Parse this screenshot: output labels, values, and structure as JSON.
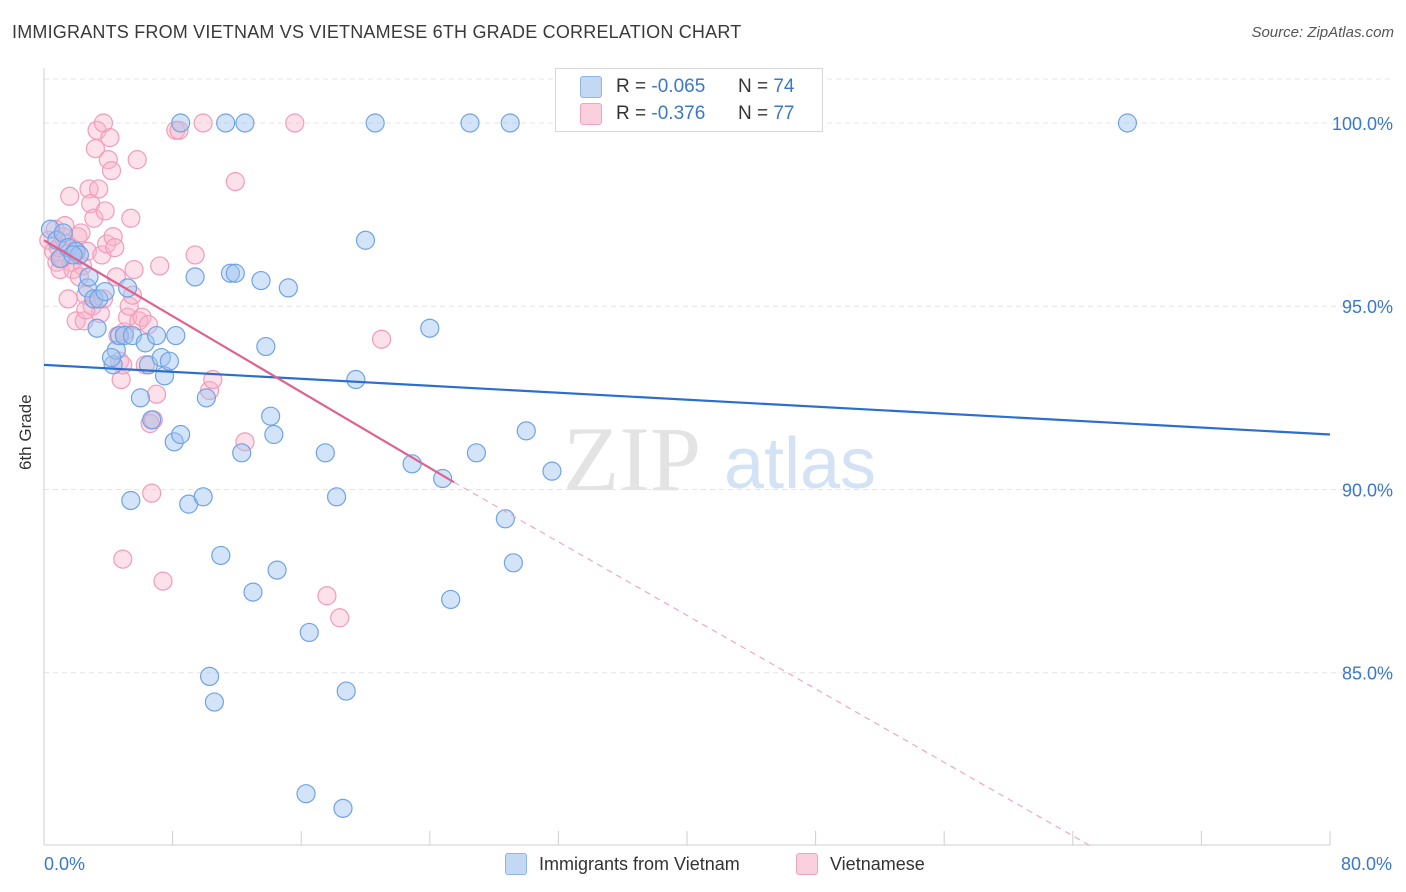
{
  "header": {
    "title": "IMMIGRANTS FROM VIETNAM VS VIETNAMESE 6TH GRADE CORRELATION CHART",
    "source": "Source: ZipAtlas.com"
  },
  "watermark": {
    "zip": "ZIP",
    "atlas": "atlas"
  },
  "legend": {
    "series": [
      {
        "r_label": "R =",
        "r_value": "-0.065",
        "n_label": "N =",
        "n_value": "74",
        "color": "#a9c8f0"
      },
      {
        "r_label": "R =",
        "r_value": "-0.376",
        "n_label": "N =",
        "n_value": "77",
        "color": "#f7b9cc"
      }
    ]
  },
  "chart_data": {
    "type": "scatter",
    "title": "IMMIGRANTS FROM VIETNAM VS VIETNAMESE 6TH GRADE CORRELATION CHART",
    "ylabel": "6th Grade",
    "xlabel": "",
    "xlim": [
      0,
      80
    ],
    "ylim": [
      80.3,
      101.5
    ],
    "x_tick_labels": [
      "0.0%",
      "80.0%"
    ],
    "y_ticks": [
      100,
      95,
      90,
      85
    ],
    "y_tick_labels": [
      "100.0%",
      "95.0%",
      "90.0%",
      "85.0%"
    ],
    "grid": "horizontal dashed",
    "series": [
      {
        "name": "Immigrants from Vietnam",
        "color": "#6fa3e6",
        "line_color": "#2a6fcf",
        "trend": {
          "x0": 0,
          "y0": 93.4,
          "x1": 80,
          "y1": 91.5
        },
        "points": [
          [
            0.4,
            97.1
          ],
          [
            0.8,
            96.8
          ],
          [
            1.0,
            96.3
          ],
          [
            1.2,
            97.0
          ],
          [
            1.5,
            96.6
          ],
          [
            2.0,
            96.5
          ],
          [
            2.2,
            96.4
          ],
          [
            2.7,
            95.5
          ],
          [
            2.8,
            95.8
          ],
          [
            3.1,
            95.2
          ],
          [
            3.4,
            95.2
          ],
          [
            3.8,
            95.4
          ],
          [
            4.3,
            93.4
          ],
          [
            4.5,
            93.8
          ],
          [
            4.7,
            94.2
          ],
          [
            5.0,
            94.2
          ],
          [
            5.2,
            95.5
          ],
          [
            5.5,
            94.2
          ],
          [
            6.0,
            92.5
          ],
          [
            6.3,
            94.0
          ],
          [
            6.5,
            93.4
          ],
          [
            6.7,
            91.9
          ],
          [
            7.0,
            94.2
          ],
          [
            7.3,
            93.6
          ],
          [
            7.5,
            93.1
          ],
          [
            7.8,
            93.5
          ],
          [
            8.1,
            91.3
          ],
          [
            8.2,
            94.2
          ],
          [
            8.5,
            91.5
          ],
          [
            9.0,
            89.6
          ],
          [
            9.4,
            95.8
          ],
          [
            9.9,
            89.8
          ],
          [
            10.1,
            92.5
          ],
          [
            10.3,
            84.9
          ],
          [
            10.6,
            84.2
          ],
          [
            11.0,
            88.2
          ],
          [
            11.6,
            95.9
          ],
          [
            11.9,
            95.9
          ],
          [
            12.3,
            91.0
          ],
          [
            12.5,
            100.0
          ],
          [
            11.3,
            100.0
          ],
          [
            13.0,
            87.2
          ],
          [
            13.5,
            95.7
          ],
          [
            13.8,
            93.9
          ],
          [
            14.1,
            92.0
          ],
          [
            14.3,
            91.5
          ],
          [
            14.5,
            87.8
          ],
          [
            15.2,
            95.5
          ],
          [
            16.3,
            81.7
          ],
          [
            16.5,
            86.1
          ],
          [
            17.5,
            91.0
          ],
          [
            18.2,
            89.8
          ],
          [
            18.6,
            81.3
          ],
          [
            18.8,
            84.5
          ],
          [
            19.4,
            93.0
          ],
          [
            20.0,
            96.8
          ],
          [
            20.6,
            100.0
          ],
          [
            22.9,
            90.7
          ],
          [
            24.0,
            94.4
          ],
          [
            24.8,
            90.3
          ],
          [
            25.3,
            87.0
          ],
          [
            26.5,
            100.0
          ],
          [
            26.9,
            91.0
          ],
          [
            28.7,
            89.2
          ],
          [
            29.0,
            100.0
          ],
          [
            29.2,
            88.0
          ],
          [
            30.0,
            91.6
          ],
          [
            31.6,
            90.5
          ],
          [
            67.4,
            100.0
          ],
          [
            8.5,
            100.0
          ],
          [
            5.4,
            89.7
          ],
          [
            3.3,
            94.4
          ],
          [
            1.8,
            96.4
          ],
          [
            4.2,
            93.6
          ]
        ]
      },
      {
        "name": "Vietnamese",
        "color": "#f39bb8",
        "line_color": "#e0608f",
        "trend": {
          "x0": 0,
          "y0": 96.8,
          "x1": 25.5,
          "y1": 90.2
        },
        "trend_dashed": {
          "x0": 25.5,
          "y0": 90.2,
          "x1": 65,
          "y1": 80.3
        },
        "points": [
          [
            0.3,
            96.8
          ],
          [
            0.6,
            96.5
          ],
          [
            0.7,
            97.1
          ],
          [
            0.8,
            96.2
          ],
          [
            1.0,
            96.0
          ],
          [
            1.2,
            96.9
          ],
          [
            1.3,
            97.2
          ],
          [
            1.4,
            96.7
          ],
          [
            1.5,
            95.2
          ],
          [
            1.6,
            98.0
          ],
          [
            1.7,
            96.2
          ],
          [
            1.8,
            96.0
          ],
          [
            2.0,
            94.6
          ],
          [
            2.1,
            96.9
          ],
          [
            2.3,
            97.0
          ],
          [
            2.4,
            96.1
          ],
          [
            2.5,
            94.6
          ],
          [
            2.6,
            95.3
          ],
          [
            2.7,
            96.5
          ],
          [
            2.8,
            98.2
          ],
          [
            2.9,
            97.8
          ],
          [
            3.0,
            95.0
          ],
          [
            3.1,
            97.4
          ],
          [
            3.2,
            99.3
          ],
          [
            3.3,
            99.8
          ],
          [
            3.4,
            98.2
          ],
          [
            3.5,
            94.8
          ],
          [
            3.6,
            96.4
          ],
          [
            3.7,
            95.2
          ],
          [
            3.8,
            97.6
          ],
          [
            3.9,
            96.7
          ],
          [
            4.0,
            99.0
          ],
          [
            4.1,
            99.6
          ],
          [
            4.2,
            98.7
          ],
          [
            4.3,
            96.9
          ],
          [
            4.4,
            96.6
          ],
          [
            4.5,
            95.8
          ],
          [
            4.6,
            94.2
          ],
          [
            4.7,
            93.5
          ],
          [
            4.8,
            93.0
          ],
          [
            4.9,
            93.4
          ],
          [
            5.0,
            94.3
          ],
          [
            5.2,
            94.7
          ],
          [
            5.3,
            95.0
          ],
          [
            5.4,
            97.4
          ],
          [
            5.5,
            95.3
          ],
          [
            5.6,
            96.0
          ],
          [
            5.8,
            99.0
          ],
          [
            5.9,
            94.6
          ],
          [
            6.1,
            94.7
          ],
          [
            6.3,
            93.4
          ],
          [
            6.5,
            94.5
          ],
          [
            6.6,
            91.8
          ],
          [
            6.8,
            91.9
          ],
          [
            7.0,
            92.6
          ],
          [
            7.2,
            96.1
          ],
          [
            7.4,
            87.5
          ],
          [
            6.7,
            89.9
          ],
          [
            8.2,
            99.8
          ],
          [
            8.4,
            99.8
          ],
          [
            9.4,
            96.4
          ],
          [
            9.9,
            100.0
          ],
          [
            10.3,
            92.7
          ],
          [
            10.5,
            93.0
          ],
          [
            11.9,
            98.4
          ],
          [
            12.5,
            91.3
          ],
          [
            15.6,
            100.0
          ],
          [
            17.6,
            87.1
          ],
          [
            18.4,
            86.5
          ],
          [
            21.0,
            94.1
          ],
          [
            4.9,
            88.1
          ],
          [
            0.9,
            96.6
          ],
          [
            1.1,
            96.3
          ],
          [
            2.2,
            95.8
          ],
          [
            3.7,
            100.0
          ],
          [
            1.9,
            96.5
          ],
          [
            2.6,
            94.9
          ]
        ]
      }
    ]
  }
}
